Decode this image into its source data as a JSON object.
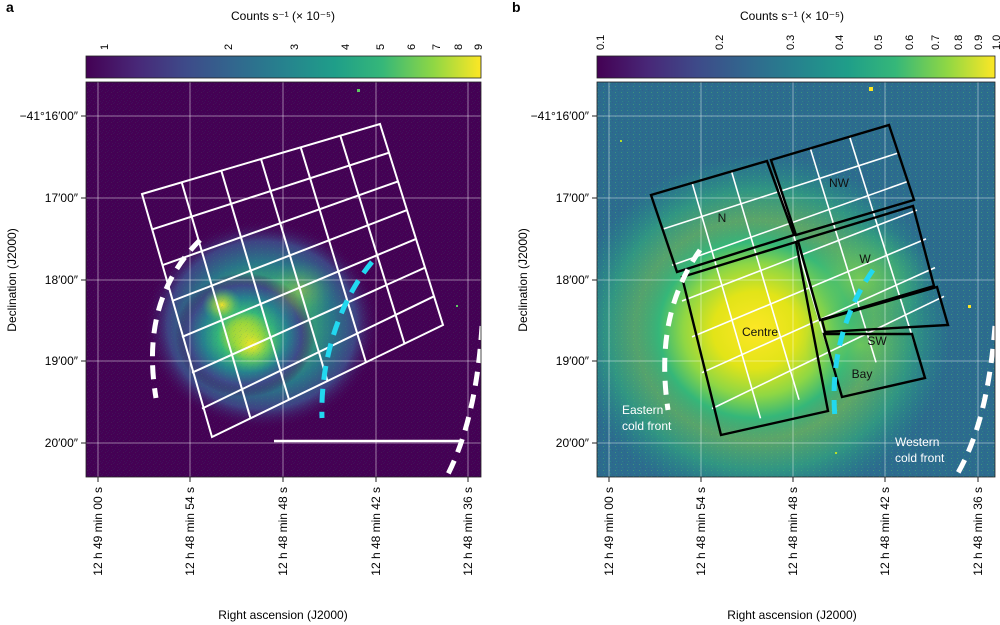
{
  "panel_a": {
    "label": "a",
    "colorbar_title": "Counts s⁻¹ (× 10⁻⁵)",
    "colorbar_ticks": [
      "1",
      "2",
      "3",
      "4",
      "5",
      "6",
      "7",
      "8",
      "9"
    ],
    "ra_ticks": [
      "12 h 49 min 00 s",
      "12 h 48 min 54 s",
      "12 h 48 min 48 s",
      "12 h 48 min 42 s",
      "12 h 48 min 36 s"
    ],
    "dec_ticks": [
      "−41°16′00″",
      "17′00″",
      "18′00″",
      "19′00″",
      "20′00″"
    ],
    "xlabel": "Right ascension (J2000)",
    "ylabel": "Declination (J2000)"
  },
  "panel_b": {
    "label": "b",
    "colorbar_title": "Counts s⁻¹ (× 10⁻⁵)",
    "colorbar_ticks": [
      "0.1",
      "0.2",
      "0.3",
      "0.4",
      "0.5",
      "0.6",
      "0.7",
      "0.8",
      "0.9",
      "1.0"
    ],
    "ra_ticks": [
      "12 h 49 min 00 s",
      "12 h 48 min 54 s",
      "12 h 48 min 48 s",
      "12 h 48 min 42 s",
      "12 h 48 min 36 s"
    ],
    "dec_ticks": [
      "−41°16′00″",
      "17′00″",
      "18′00″",
      "19′00″",
      "20′00″"
    ],
    "xlabel": "Right ascension (J2000)",
    "ylabel": "Declination (J2000)",
    "regions": {
      "n": "N",
      "nw": "NW",
      "w": "W",
      "centre": "Centre",
      "sw": "SW",
      "bay": "Bay"
    },
    "fronts": {
      "eastern_line1": "Eastern",
      "eastern_line2": "cold front",
      "western_line1": "Western",
      "western_line2": "cold front"
    }
  },
  "colors": {
    "viridis_dark": "#440154",
    "viridis_mid": "#21918c",
    "viridis_bright": "#fde725",
    "cold_front_cyan": "#22d8f0",
    "cold_front_white": "#ffffff"
  }
}
